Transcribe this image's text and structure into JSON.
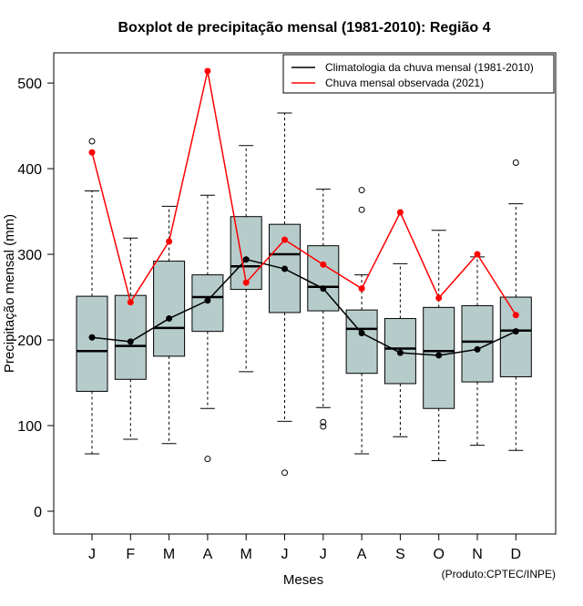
{
  "chart_data": {
    "type": "boxplot",
    "title": "Boxplot de precipitação mensal (1981-2010): Região 4",
    "xlabel": "Meses",
    "ylabel": "Precipitação mensal (mm)",
    "ylim": [
      -25,
      560
    ],
    "yticks": [
      0,
      100,
      200,
      300,
      400,
      500
    ],
    "categories": [
      "J",
      "F",
      "M",
      "A",
      "M",
      "J",
      "J",
      "A",
      "S",
      "O",
      "N",
      "D"
    ],
    "boxes": [
      {
        "month": "J",
        "whisker_low": 67,
        "q1": 140,
        "median": 187,
        "q3": 251,
        "whisker_high": 374,
        "outliers": [
          432
        ]
      },
      {
        "month": "F",
        "whisker_low": 84,
        "q1": 154,
        "median": 193,
        "q3": 252,
        "whisker_high": 319,
        "outliers": []
      },
      {
        "month": "M",
        "whisker_low": 79,
        "q1": 181,
        "median": 214,
        "q3": 292,
        "whisker_high": 356,
        "outliers": []
      },
      {
        "month": "A",
        "whisker_low": 120,
        "q1": 210,
        "median": 250,
        "q3": 276,
        "whisker_high": 369,
        "outliers": [
          61
        ]
      },
      {
        "month": "M",
        "whisker_low": 163,
        "q1": 259,
        "median": 286,
        "q3": 344,
        "whisker_high": 427,
        "outliers": []
      },
      {
        "month": "J",
        "whisker_low": 105,
        "q1": 232,
        "median": 300,
        "q3": 335,
        "whisker_high": 465,
        "outliers": [
          45
        ]
      },
      {
        "month": "J",
        "whisker_low": 121,
        "q1": 234,
        "median": 262,
        "q3": 310,
        "whisker_high": 376,
        "outliers": [
          104,
          99
        ]
      },
      {
        "month": "A",
        "whisker_low": 67,
        "q1": 161,
        "median": 213,
        "q3": 235,
        "whisker_high": 276,
        "outliers": [
          375,
          352
        ]
      },
      {
        "month": "S",
        "whisker_low": 87,
        "q1": 149,
        "median": 190,
        "q3": 225,
        "whisker_high": 289,
        "outliers": []
      },
      {
        "month": "O",
        "whisker_low": 59,
        "q1": 120,
        "median": 187,
        "q3": 238,
        "whisker_high": 328,
        "outliers": []
      },
      {
        "month": "N",
        "whisker_low": 77,
        "q1": 151,
        "median": 198,
        "q3": 240,
        "whisker_high": 297,
        "outliers": []
      },
      {
        "month": "D",
        "whisker_low": 71,
        "q1": 157,
        "median": 211,
        "q3": 250,
        "whisker_high": 359,
        "outliers": [
          407
        ]
      }
    ],
    "series": [
      {
        "name": "Climatologia da chuva mensal (1981-2010)",
        "color": "#000000",
        "values": [
          203,
          198,
          225,
          246,
          294,
          283,
          260,
          208,
          185,
          182,
          189,
          210
        ]
      },
      {
        "name": "Chuva mensal observada (2021)",
        "color": "#ff0000",
        "values": [
          419,
          244,
          315,
          514,
          267,
          317,
          288,
          260,
          349,
          249,
          300,
          229
        ]
      }
    ],
    "box_fill": "#b6cccb",
    "legend_position": "top-right"
  },
  "credit": "(Produto:CPTEC/INPE)"
}
